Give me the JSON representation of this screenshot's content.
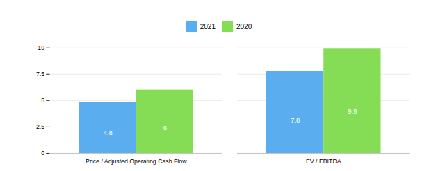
{
  "chart_data": {
    "type": "bar",
    "categories": [
      "Price / Adjusted Operating Cash Flow",
      "EV / EBITDA"
    ],
    "series": [
      {
        "name": "2021",
        "color": "#5aadee",
        "values": [
          4.8,
          7.8
        ]
      },
      {
        "name": "2020",
        "color": "#85dd55",
        "values": [
          6.0,
          9.9
        ]
      }
    ],
    "ylim": [
      0,
      10
    ],
    "yticks": [
      0,
      2.5,
      5,
      7.5,
      10
    ],
    "grid": true,
    "legend": "top",
    "data_labels": true
  }
}
